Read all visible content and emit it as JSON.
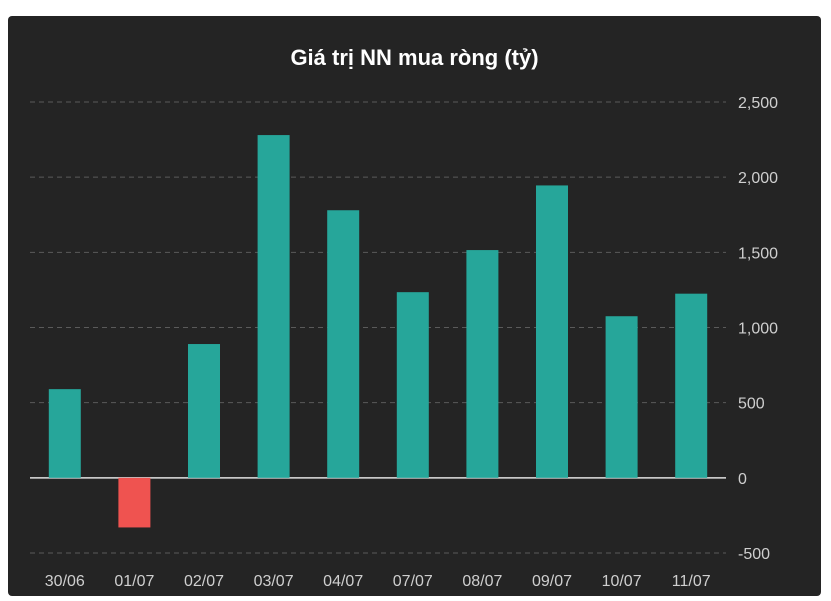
{
  "chart_data": {
    "type": "bar",
    "title": "Giá trị NN mua ròng (tỷ)",
    "categories": [
      "30/06",
      "01/07",
      "02/07",
      "03/07",
      "04/07",
      "07/07",
      "08/07",
      "09/07",
      "10/07",
      "11/07"
    ],
    "values": [
      590,
      -330,
      890,
      2280,
      1780,
      1235,
      1515,
      1945,
      1075,
      1225
    ],
    "yticks": [
      -500,
      0,
      500,
      1000,
      1500,
      2000,
      2500
    ],
    "ytick_labels": [
      "-500",
      "0",
      "500",
      "1,000",
      "1,500",
      "2,000",
      "2,500"
    ],
    "ylim": [
      -500,
      2500
    ],
    "grid": true,
    "y_axis_side": "right",
    "colors": {
      "positive": "#26a69a",
      "negative": "#ef5350",
      "background": "#242424",
      "grid": "#5a5a5a",
      "zero_line": "#e0e0e0"
    }
  }
}
